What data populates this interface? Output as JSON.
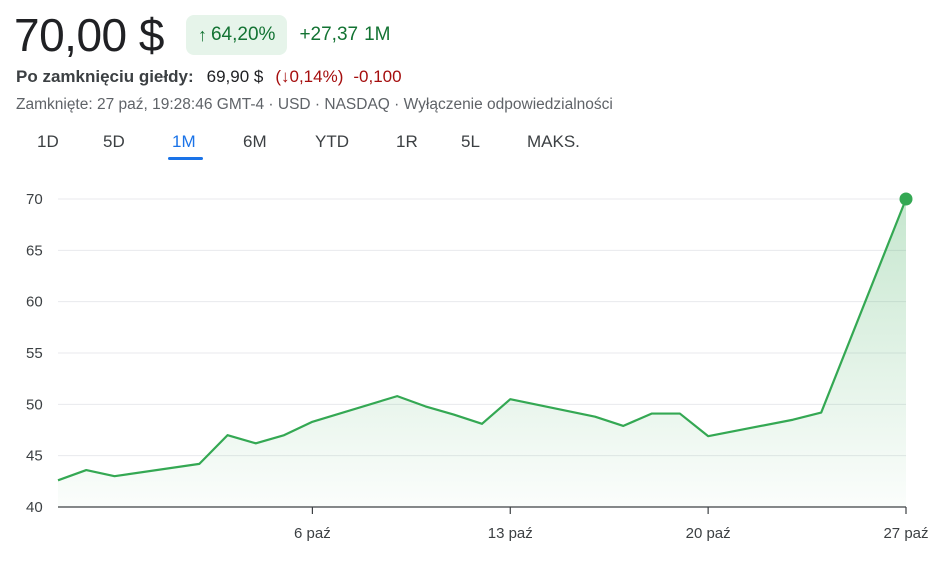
{
  "header": {
    "price": "70,00 $",
    "change_pct": "64,20%",
    "change_abs": "+27,37",
    "change_period": "1M",
    "up_arrow": "↑",
    "after_label": "Po zamknięciu giełdy:",
    "after_price": "69,90 $",
    "after_pct": "(↓0,14%)",
    "after_abs": "-0,100",
    "meta": "Zamknięte: 27 paź, 19:28:46 GMT-4 · USD · NASDAQ · Wyłączenie odpowiedzialności"
  },
  "tabs": [
    {
      "label": "1D"
    },
    {
      "label": "5D"
    },
    {
      "label": "1M",
      "active": true
    },
    {
      "label": "6M"
    },
    {
      "label": "YTD"
    },
    {
      "label": "1R"
    },
    {
      "label": "5L"
    },
    {
      "label": "MAKS."
    }
  ],
  "colors": {
    "line": "#34a853",
    "positive": "#137333",
    "negative": "#a50e0e",
    "accent": "#1a73e8"
  },
  "chart_data": {
    "type": "area",
    "ylim": [
      40,
      70
    ],
    "yticks": [
      40,
      45,
      50,
      55,
      60,
      65,
      70
    ],
    "xlim": [
      "2023-09-27",
      "2023-10-27"
    ],
    "xticks": [
      {
        "date": "2023-10-06",
        "label": "6 paź"
      },
      {
        "date": "2023-10-13",
        "label": "13 paź"
      },
      {
        "date": "2023-10-20",
        "label": "20 paź"
      },
      {
        "date": "2023-10-27",
        "label": "27 paź"
      }
    ],
    "grid": true,
    "series": [
      {
        "points": [
          {
            "date": "2023-09-27",
            "value": 42.6
          },
          {
            "date": "2023-09-28",
            "value": 43.6
          },
          {
            "date": "2023-09-29",
            "value": 43.0
          },
          {
            "date": "2023-10-02",
            "value": 44.2
          },
          {
            "date": "2023-10-03",
            "value": 47.0
          },
          {
            "date": "2023-10-04",
            "value": 46.2
          },
          {
            "date": "2023-10-05",
            "value": 47.0
          },
          {
            "date": "2023-10-06",
            "value": 48.3
          },
          {
            "date": "2023-10-09",
            "value": 50.8
          },
          {
            "date": "2023-10-10",
            "value": 49.8
          },
          {
            "date": "2023-10-11",
            "value": 49.0
          },
          {
            "date": "2023-10-12",
            "value": 48.1
          },
          {
            "date": "2023-10-13",
            "value": 50.5
          },
          {
            "date": "2023-10-16",
            "value": 48.8
          },
          {
            "date": "2023-10-17",
            "value": 47.9
          },
          {
            "date": "2023-10-18",
            "value": 49.1
          },
          {
            "date": "2023-10-19",
            "value": 49.1
          },
          {
            "date": "2023-10-20",
            "value": 46.9
          },
          {
            "date": "2023-10-23",
            "value": 48.5
          },
          {
            "date": "2023-10-24",
            "value": 49.2
          },
          {
            "date": "2023-10-27",
            "value": 70.0
          }
        ]
      }
    ]
  }
}
